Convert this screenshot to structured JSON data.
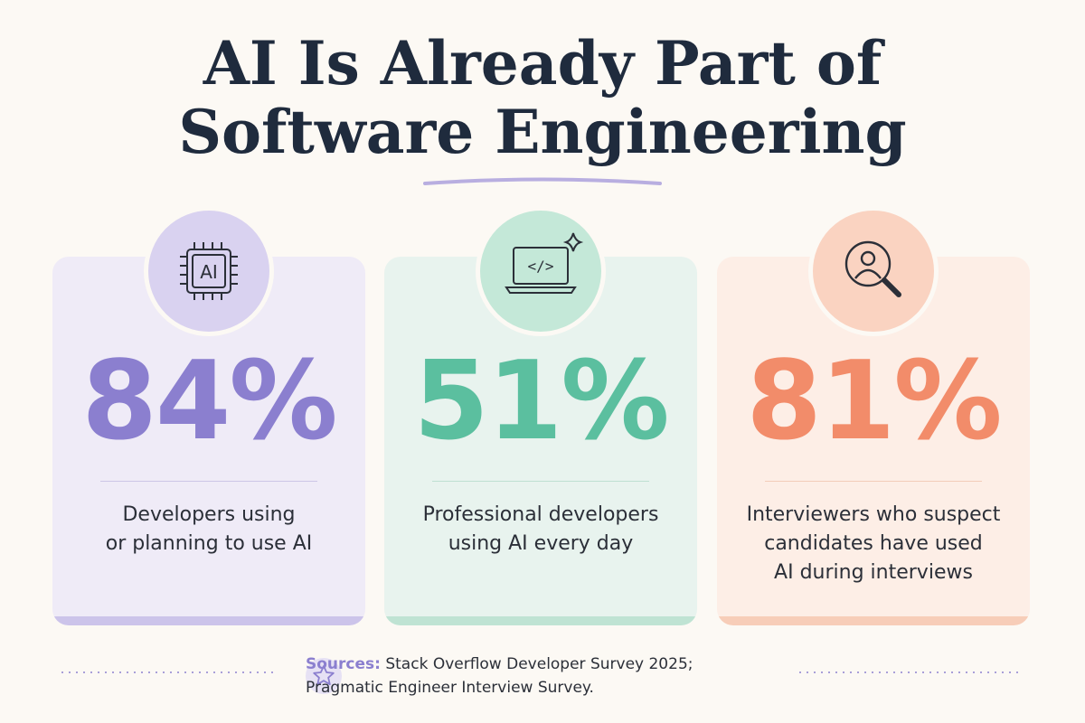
{
  "title": "AI Is Already Part of Software Engineering",
  "cards": [
    {
      "icon_text": "AI",
      "value": "84%",
      "description_lines": [
        "Developers using",
        "or planning to use AI"
      ]
    },
    {
      "icon_text": "</>",
      "value": "51%",
      "description_lines": [
        "Professional developers",
        "using AI every day"
      ]
    },
    {
      "value": "81%",
      "description_lines": [
        "Interviewers who suspect",
        "candidates have used",
        "AI during interviews"
      ]
    }
  ],
  "sources": {
    "label": "Sources:",
    "lines": [
      "Stack Overflow Developer Survey 2025;",
      "Pragmatic Engineer Interview Survey."
    ]
  }
}
